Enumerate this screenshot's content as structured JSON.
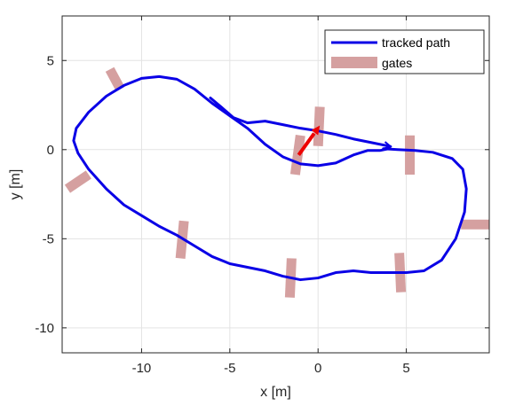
{
  "chart_data": {
    "type": "line",
    "title": "",
    "xlabel": "x [m]",
    "ylabel": "y [m]",
    "xlim": [
      -14.5,
      9.7
    ],
    "ylim": [
      -11.4,
      7.5
    ],
    "xticks": [
      -10,
      -5,
      0,
      5
    ],
    "yticks": [
      -10,
      -5,
      0,
      5
    ],
    "xtick_labels": [
      "-10",
      "-5",
      "0",
      "5"
    ],
    "ytick_labels": [
      "-10",
      "-5",
      "0",
      "5"
    ],
    "grid": true,
    "legend": {
      "placement": "top-right",
      "entries": [
        "tracked path",
        "gates"
      ]
    },
    "series": [
      {
        "name": "tracked path",
        "color": "#0a00e6",
        "points": [
          [
            -6.1,
            2.9
          ],
          [
            -5.5,
            2.4
          ],
          [
            -4.8,
            1.8
          ],
          [
            -4.0,
            1.5
          ],
          [
            -3.0,
            1.6
          ],
          [
            -2.0,
            1.4
          ],
          [
            -1.0,
            1.2
          ],
          [
            0.0,
            1.05
          ],
          [
            1.0,
            0.85
          ],
          [
            2.0,
            0.6
          ],
          [
            3.0,
            0.4
          ],
          [
            4.1,
            0.18
          ],
          [
            4.0,
            0.05
          ],
          [
            3.5,
            -0.05
          ],
          [
            2.8,
            -0.05
          ],
          [
            2.0,
            -0.3
          ],
          [
            1.0,
            -0.75
          ],
          [
            0.0,
            -0.9
          ],
          [
            -1.0,
            -0.8
          ],
          [
            -2.0,
            -0.4
          ],
          [
            -3.0,
            0.3
          ],
          [
            -4.0,
            1.2
          ],
          [
            -5.0,
            1.9
          ],
          [
            -6.0,
            2.6
          ],
          [
            -7.0,
            3.4
          ],
          [
            -8.0,
            3.95
          ],
          [
            -9.0,
            4.1
          ],
          [
            -10.0,
            4.0
          ],
          [
            -11.0,
            3.6
          ],
          [
            -12.0,
            3.0
          ],
          [
            -13.0,
            2.1
          ],
          [
            -13.7,
            1.2
          ],
          [
            -13.85,
            0.5
          ],
          [
            -13.6,
            -0.2
          ],
          [
            -13.0,
            -1.1
          ],
          [
            -12.0,
            -2.2
          ],
          [
            -11.0,
            -3.1
          ],
          [
            -10.0,
            -3.7
          ],
          [
            -9.0,
            -4.3
          ],
          [
            -8.0,
            -4.8
          ],
          [
            -7.0,
            -5.4
          ],
          [
            -6.0,
            -6.0
          ],
          [
            -5.0,
            -6.4
          ],
          [
            -4.0,
            -6.6
          ],
          [
            -3.0,
            -6.8
          ],
          [
            -2.0,
            -7.1
          ],
          [
            -1.0,
            -7.3
          ],
          [
            0.0,
            -7.2
          ],
          [
            1.0,
            -6.9
          ],
          [
            2.0,
            -6.8
          ],
          [
            3.0,
            -6.9
          ],
          [
            4.0,
            -6.9
          ],
          [
            5.0,
            -6.9
          ],
          [
            6.0,
            -6.8
          ],
          [
            7.0,
            -6.2
          ],
          [
            7.8,
            -5.0
          ],
          [
            8.3,
            -3.5
          ],
          [
            8.4,
            -2.2
          ],
          [
            8.2,
            -1.1
          ],
          [
            7.6,
            -0.5
          ],
          [
            6.5,
            -0.15
          ],
          [
            5.5,
            -0.05
          ],
          [
            4.5,
            0.0
          ],
          [
            3.7,
            0.05
          ]
        ]
      }
    ],
    "gates": [
      [
        -11.2,
        3.4,
        -11.8,
        4.5
      ],
      [
        -13.0,
        -1.4,
        -14.2,
        -2.2
      ],
      [
        -7.6,
        -4.0,
        -7.8,
        -6.1
      ],
      [
        -1.5,
        -6.1,
        -1.6,
        -8.3
      ],
      [
        4.6,
        -5.8,
        4.7,
        -8.0
      ],
      [
        8.1,
        -4.2,
        9.7,
        -4.2
      ],
      [
        5.2,
        0.8,
        5.2,
        -1.4
      ],
      [
        -1.0,
        0.8,
        -1.3,
        -1.4
      ],
      [
        0.1,
        2.4,
        0.0,
        0.2
      ]
    ],
    "gate_color": "#d5a0a0",
    "arrow": {
      "from": [
        -1.1,
        -0.3
      ],
      "to": [
        0.1,
        1.35
      ],
      "color": "#ee0000"
    }
  }
}
